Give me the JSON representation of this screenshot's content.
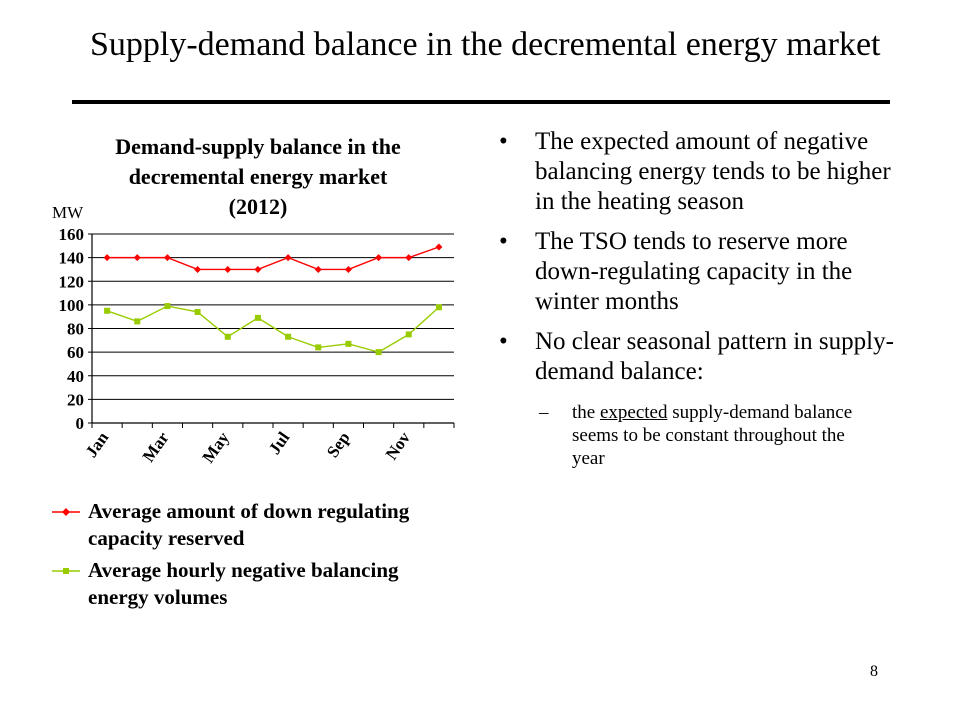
{
  "slide": {
    "title": "Supply-demand balance in the decremental energy market",
    "page_number": "8"
  },
  "bullets": [
    "The expected amount of negative balancing energy tends to be higher in the heating season",
    "The TSO tends to reserve more down-regulating capacity in the winter months",
    "No clear seasonal pattern in supply-demand balance:"
  ],
  "sub_bullet": {
    "dash": "–",
    "before": "the ",
    "underlined": "expected",
    "after": " supply-demand balance seems to be constant throughout the year"
  },
  "bullet_glyph": "•",
  "chart_data": {
    "type": "line",
    "title_lines": [
      "Demand-supply balance in the",
      "decremental energy market",
      "(2012)"
    ],
    "ylabel": "MW",
    "ylim": [
      0,
      160
    ],
    "yticks": [
      0,
      20,
      40,
      60,
      80,
      100,
      120,
      140,
      160
    ],
    "x_tick_labels": [
      "Jan",
      "",
      "Mar",
      "",
      "May",
      "",
      "Jul",
      "",
      "Sep",
      "",
      "Nov",
      ""
    ],
    "grid": "horizontal",
    "legend_position": "bottom",
    "series": [
      {
        "name": "Average amount of down regulating capacity reserved",
        "legend_lines": [
          "Average amount of down regulating",
          "capacity reserved"
        ],
        "color": "#ff0000",
        "marker": "diamond",
        "values": [
          140,
          140,
          140,
          130,
          130,
          130,
          140,
          130,
          130,
          140,
          140,
          149
        ]
      },
      {
        "name": "Average hourly negative balancing energy volumes",
        "legend_lines": [
          "Average hourly negative balancing",
          "energy volumes"
        ],
        "color": "#99cc00",
        "marker": "square",
        "values": [
          95,
          86,
          99,
          94,
          73,
          89,
          73,
          64,
          67,
          60,
          75,
          98
        ]
      }
    ]
  }
}
